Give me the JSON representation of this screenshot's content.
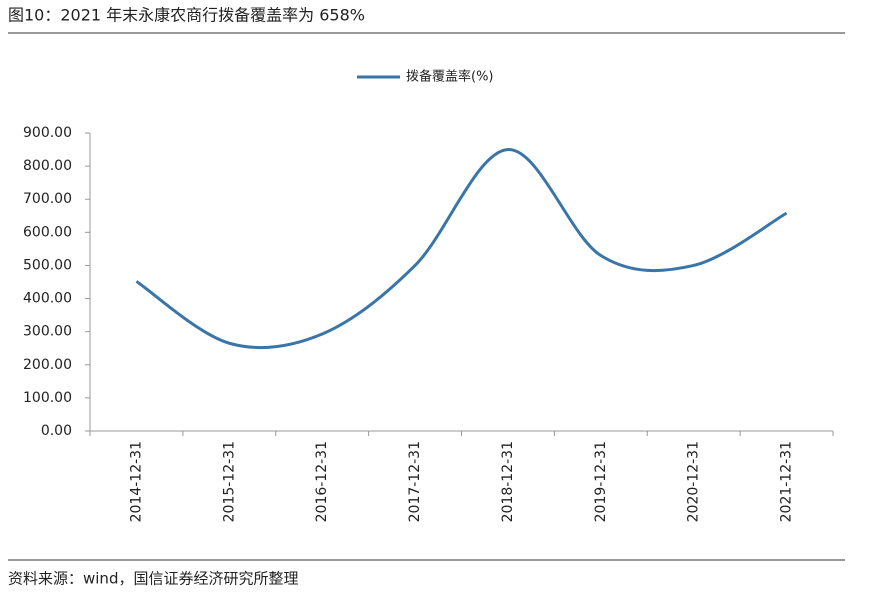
{
  "chart_data": {
    "type": "line",
    "title": "图10：2021 年末永康农商行拨备覆盖率为 658%",
    "categories": [
      "2014-12-31",
      "2015-12-31",
      "2016-12-31",
      "2017-12-31",
      "2018-12-31",
      "2019-12-31",
      "2020-12-31",
      "2021-12-31"
    ],
    "series": [
      {
        "name": "拨备覆盖率(%)",
        "color": "#3a75a8",
        "values": [
          452,
          265,
          293,
          500,
          850,
          530,
          500,
          658
        ]
      }
    ],
    "ylim": [
      0,
      900
    ],
    "yticks": [
      {
        "value": 0,
        "label": "0.00"
      },
      {
        "value": 100,
        "label": "100.00"
      },
      {
        "value": 200,
        "label": "200.00"
      },
      {
        "value": 300,
        "label": "300.00"
      },
      {
        "value": 400,
        "label": "400.00"
      },
      {
        "value": 500,
        "label": "500.00"
      },
      {
        "value": 600,
        "label": "600.00"
      },
      {
        "value": 700,
        "label": "700.00"
      },
      {
        "value": 800,
        "label": "800.00"
      },
      {
        "value": 900,
        "label": "900.00"
      }
    ],
    "grid": false,
    "smooth": true,
    "legend": "top"
  },
  "source": "资料来源：wind，国信证券经济研究所整理"
}
